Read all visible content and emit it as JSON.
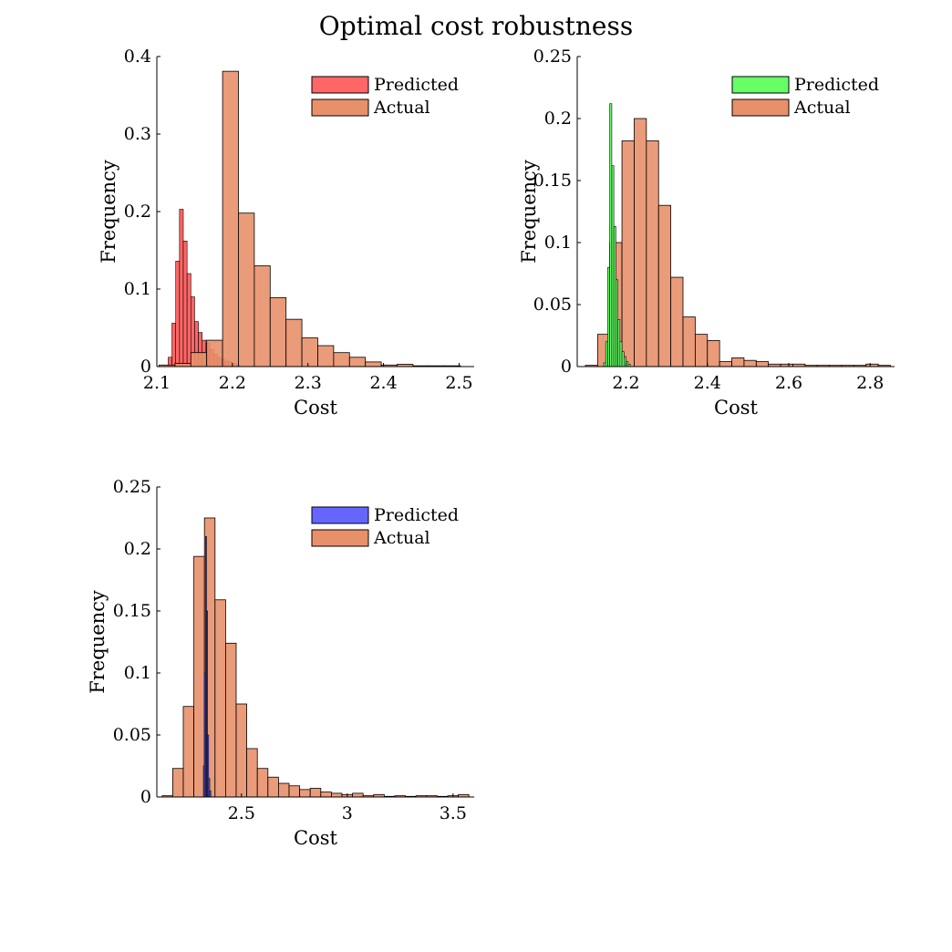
{
  "figure": {
    "title": "Optimal cost robustness"
  },
  "chart_data": [
    {
      "type": "histogram",
      "xlabel": "Cost",
      "ylabel": "Frequency",
      "xlim": [
        2.1,
        2.52
      ],
      "ylim": [
        0,
        0.4
      ],
      "xticks": [
        2.1,
        2.2,
        2.3,
        2.4,
        2.5
      ],
      "yticks": [
        0,
        0.1,
        0.2,
        0.3,
        0.4
      ],
      "legend_position": "top-right",
      "series": [
        {
          "name": "Predicted",
          "color": "#ff6666",
          "bin_edges": [
            2.115,
            2.12,
            2.125,
            2.13,
            2.135,
            2.14,
            2.145,
            2.15,
            2.155,
            2.16,
            2.165,
            2.17,
            2.175,
            2.18,
            2.185,
            2.19,
            2.195,
            2.2,
            2.205,
            2.21
          ],
          "values": [
            0.012,
            0.056,
            0.136,
            0.203,
            0.162,
            0.12,
            0.09,
            0.058,
            0.044,
            0.034,
            0.03,
            0.022,
            0.016,
            0.012,
            0.009,
            0.007,
            0.006,
            0.004,
            0.002
          ]
        },
        {
          "name": "Actual",
          "color": "#e8906a",
          "bin_edges": [
            2.103,
            2.124,
            2.145,
            2.166,
            2.187,
            2.208,
            2.229,
            2.25,
            2.271,
            2.292,
            2.313,
            2.334,
            2.355,
            2.376,
            2.397,
            2.418,
            2.439,
            2.46,
            2.481,
            2.502
          ],
          "values": [
            0.002,
            0.004,
            0.018,
            0.034,
            0.381,
            0.198,
            0.13,
            0.089,
            0.061,
            0.037,
            0.027,
            0.018,
            0.012,
            0.006,
            0.002,
            0.003,
            0.001,
            0.001,
            0.001
          ]
        }
      ]
    },
    {
      "type": "histogram",
      "xlabel": "Cost",
      "ylabel": "Frequency",
      "xlim": [
        2.08,
        2.86
      ],
      "ylim": [
        0,
        0.25
      ],
      "xticks": [
        2.2,
        2.4,
        2.6,
        2.8
      ],
      "yticks": [
        0,
        0.05,
        0.1,
        0.15,
        0.2,
        0.25
      ],
      "legend_position": "top-right",
      "series": [
        {
          "name": "Actual",
          "color": "#e8906a",
          "bin_edges": [
            2.1,
            2.13,
            2.16,
            2.19,
            2.22,
            2.25,
            2.28,
            2.31,
            2.34,
            2.37,
            2.4,
            2.43,
            2.46,
            2.49,
            2.52,
            2.55,
            2.58,
            2.61,
            2.64,
            2.67,
            2.7,
            2.73,
            2.76,
            2.79,
            2.82,
            2.85
          ],
          "values": [
            0.001,
            0.026,
            0.1,
            0.182,
            0.2,
            0.182,
            0.13,
            0.072,
            0.04,
            0.026,
            0.021,
            0.004,
            0.007,
            0.005,
            0.004,
            0.002,
            0.002,
            0.002,
            0.001,
            0.001,
            0.001,
            0.001,
            0.001,
            0.002,
            0.001
          ]
        },
        {
          "name": "Predicted",
          "color": "#66ff66",
          "bin_edges": [
            2.145,
            2.15,
            2.155,
            2.16,
            2.165,
            2.17,
            2.175,
            2.18,
            2.185,
            2.19,
            2.195,
            2.2,
            2.205,
            2.21
          ],
          "values": [
            0.003,
            0.02,
            0.08,
            0.212,
            0.162,
            0.113,
            0.07,
            0.038,
            0.02,
            0.012,
            0.008,
            0.004,
            0.002
          ]
        }
      ]
    },
    {
      "type": "histogram",
      "xlabel": "Cost",
      "ylabel": "Frequency",
      "xlim": [
        2.1,
        3.6
      ],
      "ylim": [
        0,
        0.25
      ],
      "xticks": [
        2.5,
        3,
        3.5
      ],
      "yticks": [
        0,
        0.05,
        0.1,
        0.15,
        0.2,
        0.25
      ],
      "legend_position": "top-right",
      "series": [
        {
          "name": "Actual",
          "color": "#e8906a",
          "bin_edges": [
            2.125,
            2.175,
            2.225,
            2.275,
            2.325,
            2.375,
            2.425,
            2.475,
            2.525,
            2.575,
            2.625,
            2.675,
            2.725,
            2.775,
            2.825,
            2.875,
            2.925,
            2.975,
            3.025,
            3.075,
            3.125,
            3.175,
            3.225,
            3.275,
            3.325,
            3.375,
            3.425,
            3.475,
            3.525,
            3.575
          ],
          "values": [
            0.001,
            0.023,
            0.073,
            0.194,
            0.225,
            0.159,
            0.124,
            0.075,
            0.039,
            0.023,
            0.016,
            0.011,
            0.009,
            0.006,
            0.007,
            0.004,
            0.003,
            0.002,
            0.003,
            0.001,
            0.002,
            0.0005,
            0.001,
            0.0005,
            0.001,
            0.001,
            0.0005,
            0.001,
            0.002
          ]
        },
        {
          "name": "Predicted",
          "color": "#6666ff",
          "bin_edges": [
            2.32,
            2.325,
            2.33,
            2.335,
            2.34,
            2.345,
            2.35,
            2.355
          ],
          "values": [
            0.025,
            0.1,
            0.21,
            0.15,
            0.05,
            0.015,
            0.005
          ]
        }
      ]
    }
  ]
}
